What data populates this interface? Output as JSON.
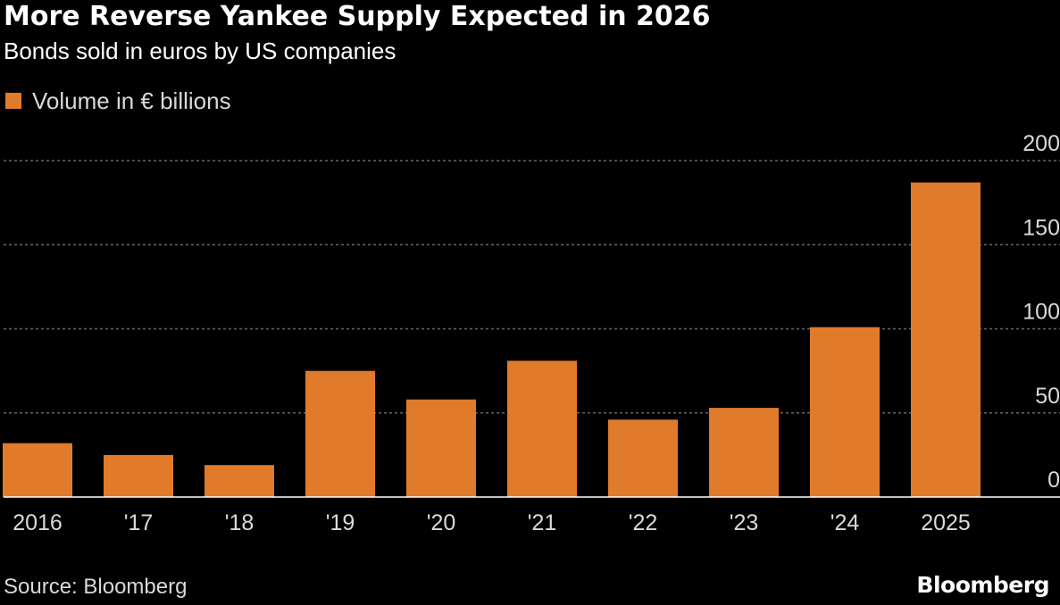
{
  "header": {
    "title": "More Reverse Yankee Supply Expected in 2026",
    "subtitle": "Bonds sold in euros by US companies"
  },
  "footer": {
    "source": "Source: Bloomberg",
    "brand": "Bloomberg"
  },
  "colors": {
    "background": "#000000",
    "bar": "#e07b2c",
    "grid": "#666666",
    "axis": "#ffffff",
    "text": "#ffffff",
    "muted_text": "#d9d9d9"
  },
  "chart_data": {
    "type": "bar",
    "title": "More Reverse Yankee Supply Expected in 2026",
    "subtitle": "Bonds sold in euros by US companies",
    "xlabel": "",
    "ylabel": "",
    "series": [
      {
        "name": "Volume in € billions",
        "values": [
          32,
          25,
          19,
          75,
          58,
          81,
          46,
          53,
          101,
          187
        ]
      }
    ],
    "categories": [
      "2016",
      "'17",
      "'18",
      "'19",
      "'20",
      "'21",
      "'22",
      "'23",
      "'24",
      "2025"
    ],
    "ylim": [
      0,
      200
    ],
    "yticks": [
      0,
      50,
      100,
      150,
      200
    ],
    "ytick_labels": [
      "0",
      "50",
      "100",
      "150",
      "200"
    ],
    "y_axis_side": "right",
    "grid": "horizontal dashed",
    "legend_position": "top-left"
  }
}
